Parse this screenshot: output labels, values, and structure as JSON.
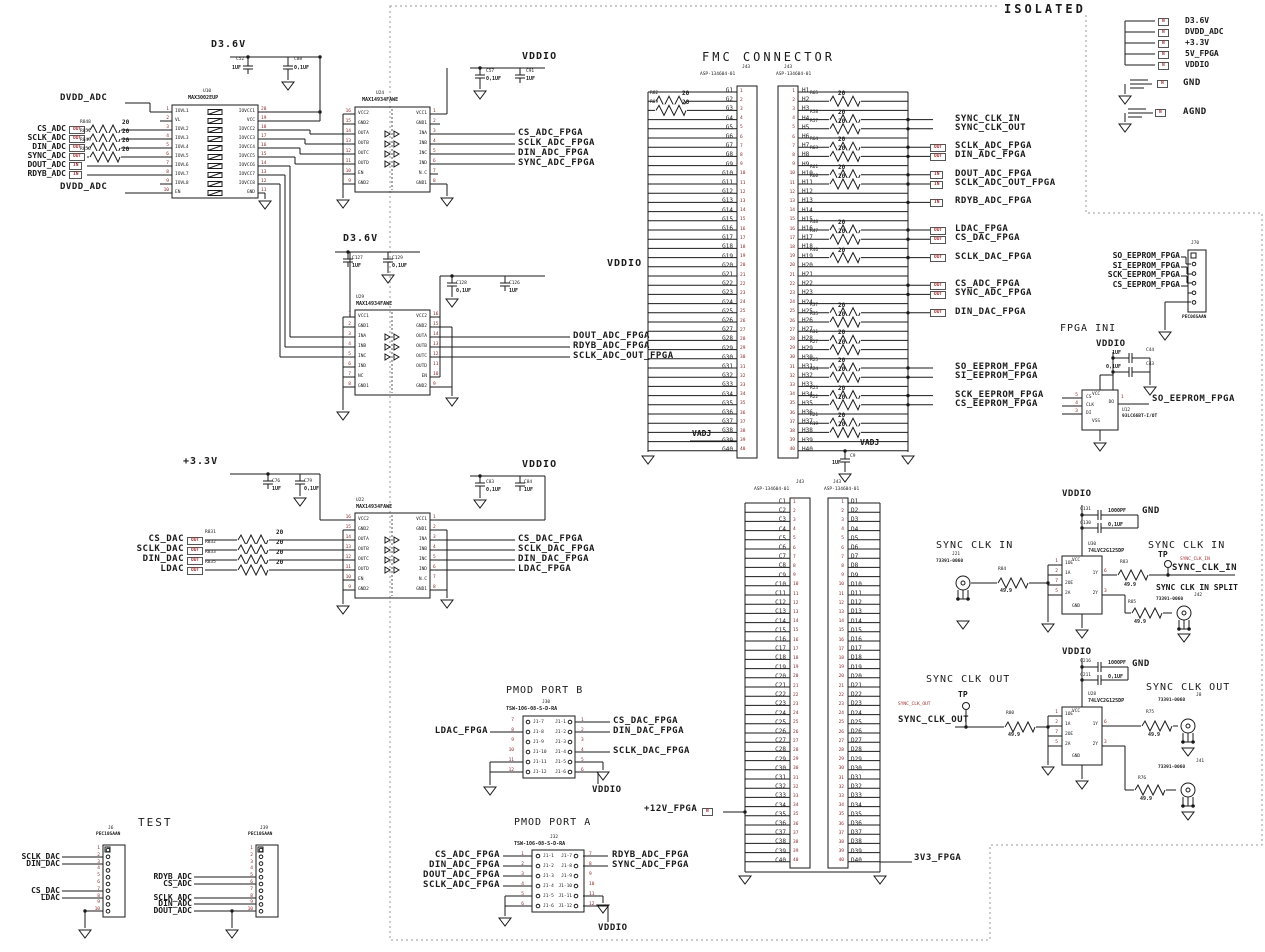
{
  "isolated_label": "ISOLATED",
  "legend": {
    "tag": "IN",
    "flags": [
      "D3.6V",
      "DVDD_ADC",
      "+3.3V",
      "5V_FPGA",
      "VDDIO"
    ],
    "flag_tags": [
      "N",
      "N",
      "N",
      "N",
      "N"
    ],
    "gnd": "GND",
    "gnd_tag": "N",
    "agnd": "AGND",
    "agnd_tag": "N"
  },
  "adc_if": {
    "net_top": "D3.6V",
    "cap1": {
      "ref": "C52",
      "val": "1UF"
    },
    "cap2": {
      "ref": "C88",
      "val": "0,1UF"
    },
    "net_dvdd_top": "DVDD_ADC",
    "net_dvdd_bot": "DVDD_ADC",
    "inputs": [
      {
        "tag": "OUT",
        "label": "CS_ADC",
        "res": "R848",
        "val": "20"
      },
      {
        "tag": "OUT",
        "label": "SCLK_ADC",
        "res": "R851",
        "val": "20"
      },
      {
        "tag": "OUT",
        "label": "DIN_ADC",
        "res": "R849",
        "val": "20"
      },
      {
        "tag": "OUT",
        "label": "SYNC_ADC",
        "res": "R850",
        "val": "20"
      },
      {
        "tag": "IN",
        "label": "DOUT_ADC"
      },
      {
        "tag": "IN",
        "label": "RDYB_ADC"
      }
    ]
  },
  "u10": {
    "ref": "U10",
    "part": "MAX3002EUP",
    "left": [
      {
        "n": "1",
        "name": "IOVL1"
      },
      {
        "n": "2",
        "name": "VL"
      },
      {
        "n": "3",
        "name": "IOVL2"
      },
      {
        "n": "4",
        "name": "IOVL3"
      },
      {
        "n": "5",
        "name": "IOVL4"
      },
      {
        "n": "6",
        "name": "IOVL5"
      },
      {
        "n": "7",
        "name": "IOVL6"
      },
      {
        "n": "8",
        "name": "IOVL7"
      },
      {
        "n": "9",
        "name": "IOVL8"
      },
      {
        "n": "10",
        "name": "EN"
      }
    ],
    "right": [
      {
        "n": "20",
        "name": "IOVCC1"
      },
      {
        "n": "19",
        "name": "VCC"
      },
      {
        "n": "18",
        "name": "IOVCC2"
      },
      {
        "n": "17",
        "name": "IOVCC3"
      },
      {
        "n": "16",
        "name": "IOVCC4"
      },
      {
        "n": "15",
        "name": "IOVCC5"
      },
      {
        "n": "14",
        "name": "IOVCC6"
      },
      {
        "n": "13",
        "name": "IOVCC7"
      },
      {
        "n": "12",
        "name": "IOVCC8"
      },
      {
        "n": "11",
        "name": "GND"
      }
    ]
  },
  "u24": {
    "ref": "U24",
    "part": "MAX14934FAWE",
    "left": [
      {
        "n": "16",
        "name": "VCC2"
      },
      {
        "n": "15",
        "name": "GND2"
      },
      {
        "n": "14",
        "name": "OUTA"
      },
      {
        "n": "13",
        "name": "OUTB"
      },
      {
        "n": "12",
        "name": "OUTC"
      },
      {
        "n": "11",
        "name": "OUTD"
      },
      {
        "n": "10",
        "name": "EN"
      },
      {
        "n": "9",
        "name": "GND2"
      }
    ],
    "right": [
      {
        "n": "1",
        "name": "VCC1"
      },
      {
        "n": "2",
        "name": "GND1"
      },
      {
        "n": "3",
        "name": "INA"
      },
      {
        "n": "4",
        "name": "INB"
      },
      {
        "n": "5",
        "name": "INC"
      },
      {
        "n": "6",
        "name": "IND"
      },
      {
        "n": "7",
        "name": "N.C"
      },
      {
        "n": "8",
        "name": "GND1"
      }
    ],
    "signals": [
      "CS_ADC_FPGA",
      "SCLK_ADC_FPGA",
      "DIN_ADC_FPGA",
      "SYNC_ADC_FPGA"
    ],
    "vddio": {
      "net": "VDDIO",
      "cap1": {
        "ref": "C57",
        "val": "0,1UF"
      },
      "cap2": {
        "ref": "C91",
        "val": "1UF"
      }
    }
  },
  "mid": {
    "net": "D3.6V",
    "cap1": {
      "ref": "C127",
      "val": "1UF"
    },
    "cap2": {
      "ref": "C129",
      "val": "0,1UF"
    }
  },
  "u29": {
    "ref": "U29",
    "part": "MAX14934FAWE",
    "left": [
      {
        "n": "1",
        "name": "VCC1"
      },
      {
        "n": "2",
        "name": "GND1"
      },
      {
        "n": "3",
        "name": "INA"
      },
      {
        "n": "4",
        "name": "INB"
      },
      {
        "n": "5",
        "name": "INC"
      },
      {
        "n": "6",
        "name": "IND"
      },
      {
        "n": "7",
        "name": "NC"
      },
      {
        "n": "8",
        "name": "GND1"
      }
    ],
    "right": [
      {
        "n": "16",
        "name": "VCC2"
      },
      {
        "n": "15",
        "name": "GND2"
      },
      {
        "n": "14",
        "name": "OUTA"
      },
      {
        "n": "13",
        "name": "OUTB"
      },
      {
        "n": "12",
        "name": "OUTC"
      },
      {
        "n": "11",
        "name": "OUTD"
      },
      {
        "n": "10",
        "name": "EN"
      },
      {
        "n": "9",
        "name": "GND2"
      }
    ],
    "signals": [
      "DOUT_ADC_FPGA",
      "RDYB_ADC_FPGA",
      "SCLK_ADC_OUT_FPGA"
    ],
    "vddio": {
      "net": "VDDIO",
      "cap1": {
        "ref": "C128",
        "val": "0,1UF"
      },
      "cap2": {
        "ref": "C126",
        "val": "1UF"
      }
    }
  },
  "dac_if": {
    "net": "+3.3V",
    "cap1": {
      "ref": "C76",
      "val": "1UF"
    },
    "cap2": {
      "ref": "C79",
      "val": "0,1UF"
    },
    "inputs": [
      {
        "tag": "OUT",
        "label": "CS_DAC",
        "res": "R831",
        "val": "20"
      },
      {
        "tag": "OUT",
        "label": "SCLK_DAC",
        "res": "R832",
        "val": "20"
      },
      {
        "tag": "OUT",
        "label": "DIN_DAC",
        "res": "R833",
        "val": "20"
      },
      {
        "tag": "OUT",
        "label": "LDAC",
        "res": "R835",
        "val": "20"
      }
    ]
  },
  "u22": {
    "ref": "U22",
    "part": "MAX14934FAWE",
    "left": [
      {
        "n": "16",
        "name": "VCC2"
      },
      {
        "n": "15",
        "name": "GND2"
      },
      {
        "n": "14",
        "name": "OUTA"
      },
      {
        "n": "13",
        "name": "OUTB"
      },
      {
        "n": "12",
        "name": "OUTC"
      },
      {
        "n": "11",
        "name": "OUTD"
      },
      {
        "n": "10",
        "name": "EN"
      },
      {
        "n": "9",
        "name": "GND2"
      }
    ],
    "right": [
      {
        "n": "1",
        "name": "VCC1"
      },
      {
        "n": "2",
        "name": "GND1"
      },
      {
        "n": "3",
        "name": "INA"
      },
      {
        "n": "4",
        "name": "INB"
      },
      {
        "n": "5",
        "name": "INC"
      },
      {
        "n": "6",
        "name": "IND"
      },
      {
        "n": "7",
        "name": "N.C"
      },
      {
        "n": "8",
        "name": "GND1"
      }
    ],
    "signals": [
      "CS_DAC_FPGA",
      "SCLK_DAC_FPGA",
      "DIN_DAC_FPGA",
      "LDAC_FPGA"
    ],
    "vddio": {
      "net": "VDDIO",
      "cap1": {
        "ref": "C83",
        "val": "0,1UF"
      },
      "cap2": {
        "ref": "C84",
        "val": "1UF"
      }
    }
  },
  "fmc": {
    "title": "FMC CONNECTOR",
    "upper": {
      "left_ref": "J43",
      "left_part": "ASP-134604-01",
      "right_ref": "J43",
      "right_part": "ASP-134604-01"
    },
    "lower": {
      "left_ref": "J43",
      "left_part": "ASP-134604-01",
      "right_ref": "J43",
      "right_part": "ASP-134604-01"
    },
    "g_pins": [
      "G1",
      "G2",
      "G3",
      "G4",
      "G5",
      "G6",
      "G7",
      "G8",
      "G9",
      "G10",
      "G11",
      "G12",
      "G13",
      "G14",
      "G15",
      "G16",
      "G17",
      "G18",
      "G19",
      "G20",
      "G21",
      "G22",
      "G23",
      "G24",
      "G25",
      "G26",
      "G27",
      "G28",
      "G29",
      "G30",
      "G31",
      "G32",
      "G33",
      "G34",
      "G35",
      "G36",
      "G37",
      "G38",
      "G39",
      "G40"
    ],
    "h_pins": [
      "H1",
      "H2",
      "H3",
      "H4",
      "H5",
      "H6",
      "H7",
      "H8",
      "H9",
      "H10",
      "H11",
      "H12",
      "H13",
      "H14",
      "H15",
      "H16",
      "H17",
      "H18",
      "H19",
      "H20",
      "H21",
      "H22",
      "H23",
      "H24",
      "H25",
      "H26",
      "H27",
      "H28",
      "H29",
      "H30",
      "H31",
      "H32",
      "H33",
      "H34",
      "H35",
      "H36",
      "H37",
      "H38",
      "H39",
      "H40"
    ],
    "c_pins": [
      "C1",
      "C2",
      "C3",
      "C4",
      "C5",
      "C6",
      "C7",
      "C8",
      "C9",
      "C10",
      "C11",
      "C12",
      "C13",
      "C14",
      "C15",
      "C16",
      "C17",
      "C18",
      "C19",
      "C20",
      "C21",
      "C22",
      "C23",
      "C24",
      "C25",
      "C26",
      "C27",
      "C28",
      "C29",
      "C30",
      "C31",
      "C32",
      "C33",
      "C34",
      "C35",
      "C36",
      "C37",
      "C38",
      "C39",
      "C40"
    ],
    "d_pins": [
      "D1",
      "D2",
      "D3",
      "D4",
      "D5",
      "D6",
      "D7",
      "D8",
      "D9",
      "D10",
      "D11",
      "D12",
      "D13",
      "D14",
      "D15",
      "D16",
      "D17",
      "D18",
      "D19",
      "D20",
      "D21",
      "D22",
      "D23",
      "D24",
      "D25",
      "D26",
      "D27",
      "D28",
      "D29",
      "D30",
      "D31",
      "D32",
      "D33",
      "D34",
      "D35",
      "D36",
      "D37",
      "D38",
      "D39",
      "D40"
    ],
    "g_res": [
      {
        "row": 2,
        "ref": "R82",
        "val": "20"
      },
      {
        "row": 3,
        "ref": "R69",
        "val": "20"
      }
    ],
    "h_res": [
      {
        "row": 2,
        "ref": "R65",
        "val": "20"
      },
      {
        "row": 4,
        "ref": "R58",
        "val": "20"
      },
      {
        "row": 5,
        "ref": "R57",
        "val": "20"
      },
      {
        "row": 7,
        "ref": "R64",
        "val": "20"
      },
      {
        "row": 8,
        "ref": "R63",
        "val": "20"
      },
      {
        "row": 10,
        "ref": "R61",
        "val": "20"
      },
      {
        "row": 11,
        "ref": "R60",
        "val": "20"
      },
      {
        "row": 16,
        "ref": "R48",
        "val": "20"
      },
      {
        "row": 17,
        "ref": "R47",
        "val": "20"
      },
      {
        "row": 19,
        "ref": "R46",
        "val": "20"
      },
      {
        "row": 25,
        "ref": "R37",
        "val": "20"
      },
      {
        "row": 26,
        "ref": "R35",
        "val": "20"
      },
      {
        "row": 28,
        "ref": "R31",
        "val": "20"
      },
      {
        "row": 29,
        "ref": "R27",
        "val": "20"
      },
      {
        "row": 31,
        "ref": "R25",
        "val": "20"
      },
      {
        "row": 32,
        "ref": "R24",
        "val": "20"
      },
      {
        "row": 34,
        "ref": "R23",
        "val": "20"
      },
      {
        "row": 35,
        "ref": "R22",
        "val": "20"
      },
      {
        "row": 37,
        "ref": "R21",
        "val": "20"
      },
      {
        "row": 38,
        "ref": "R19",
        "val": "20"
      }
    ],
    "h_sig": [
      {
        "row": 4,
        "label": "SYNC_CLK_IN"
      },
      {
        "row": 5,
        "label": "SYNC_CLK_OUT"
      },
      {
        "row": 7,
        "tag": "OUT",
        "label": "SCLK_ADC_FPGA"
      },
      {
        "row": 8,
        "tag": "OUT",
        "label": "DIN_ADC_FPGA"
      },
      {
        "row": 10,
        "tag": "IN",
        "label": "DOUT_ADC_FPGA"
      },
      {
        "row": 11,
        "tag": "IN",
        "label": "SCLK_ADC_OUT_FPGA"
      },
      {
        "row": 13,
        "tag": "IN",
        "label": "RDYB_ADC_FPGA"
      },
      {
        "row": 16,
        "tag": "OUT",
        "label": "LDAC_FPGA"
      },
      {
        "row": 17,
        "tag": "OUT",
        "label": "CS_DAC_FPGA"
      },
      {
        "row": 19,
        "tag": "OUT",
        "label": "SCLK_DAC_FPGA"
      },
      {
        "row": 22,
        "tag": "OUT",
        "label": "CS_ADC_FPGA"
      },
      {
        "row": 23,
        "tag": "OUT",
        "label": "SYNC_ADC_FPGA"
      },
      {
        "row": 25,
        "tag": "OUT",
        "label": "DIN_DAC_FPGA"
      },
      {
        "row": 31,
        "label": "SO_EEPROM_FPGA"
      },
      {
        "row": 32,
        "label": "SI_EEPROM_FPGA"
      },
      {
        "row": 34,
        "label": "SCK_EEPROM_FPGA"
      },
      {
        "row": 35,
        "label": "CS_EEPROM_FPGA"
      }
    ],
    "vadj_left": "VADJ",
    "vadj_right": "VADJ",
    "vadj_cap": {
      "ref": "C9",
      "val": "1UF"
    },
    "p12v": {
      "tag": "N",
      "label": "+12V_FPGA"
    },
    "p3v3": "3V3_FPGA"
  },
  "eeprom_hdr": {
    "ref": "J70",
    "part": "PEC06SAAN",
    "signals": [
      "SO_EEPROM_FPGA",
      "SI_EEPROM_FPGA",
      "SCK_EEPROM_FPGA",
      "CS_EEPROM_FPGA"
    ]
  },
  "fpga_ini": {
    "title": "FPGA INI",
    "net": "VDDIO",
    "cap1": {
      "ref": "C44",
      "val": "1UF"
    },
    "cap2": {
      "ref": "C43",
      "val": "0,1UF"
    },
    "u12": {
      "ref": "U12",
      "part": "93LC66BT-I/OT",
      "pins_left": [
        {
          "n": "5",
          "name": "CS"
        },
        {
          "n": "4",
          "name": "CLK"
        },
        {
          "n": "3",
          "name": "DI"
        }
      ],
      "pin_do": {
        "n": "1",
        "name": "DO"
      },
      "vcc": "VCC",
      "vss": "VSS",
      "out": "SO_EEPROM_FPGA"
    }
  },
  "clk_in": {
    "title": "SYNC CLK IN",
    "sma": {
      "ref": "J21",
      "part": "73391-0060"
    },
    "r1": {
      "ref": "R84",
      "val": "49.9"
    },
    "buf": {
      "ref": "U30",
      "part": "74LVC2G125DP",
      "left": [
        {
          "n": "1",
          "name": "1OE"
        },
        {
          "n": "2",
          "name": "1A"
        },
        {
          "n": "7",
          "name": "2OE"
        },
        {
          "n": "5",
          "name": "2A"
        }
      ],
      "right": [
        {
          "n": "6",
          "name": "1Y",
          "row": 2
        },
        {
          "n": "3",
          "name": "2Y",
          "row": 4
        }
      ],
      "vcc": "VCC",
      "gnd": "GND"
    },
    "vddio": "VDDIO",
    "cap1": {
      "ref": "C131",
      "val": "1000PF"
    },
    "cap2": {
      "ref": "C130",
      "val": "0,1UF"
    },
    "gnd_lbl": "GND",
    "title_r": "SYNC CLK IN",
    "tp": "TP",
    "net_sm": "SYNC_CLK_IN",
    "net": "SYNC_CLK_IN",
    "r2": {
      "ref": "R83",
      "val": "49.9"
    },
    "split_title": "SYNC CLK IN SPLIT",
    "r3": {
      "ref": "R85",
      "val": "49.9"
    },
    "sma2": {
      "ref": "J42",
      "part": "73391-0060"
    }
  },
  "clk_out": {
    "title": "SYNC CLK OUT",
    "tp": "TP",
    "net_sm": "SYNC_CLK_OUT",
    "net": "SYNC_CLK_OUT",
    "r1": {
      "ref": "R80",
      "val": "49.9"
    },
    "buf": {
      "ref": "U28",
      "part": "74LVC2G125DP",
      "left": [
        {
          "n": "1",
          "name": "1OE"
        },
        {
          "n": "2",
          "name": "1A"
        },
        {
          "n": "7",
          "name": "2OE"
        },
        {
          "n": "5",
          "name": "2A"
        }
      ],
      "right": [
        {
          "n": "6",
          "name": "1Y",
          "row": 2
        },
        {
          "n": "3",
          "name": "2Y",
          "row": 4
        }
      ],
      "vcc": "VCC",
      "gnd": "GND"
    },
    "vddio": "VDDIO",
    "cap1": {
      "ref": "C216",
      "val": "1000PF"
    },
    "cap2": {
      "ref": "C211",
      "val": "0,1UF"
    },
    "gnd_lbl": "GND",
    "title_r": "SYNC CLK OUT",
    "r2": {
      "ref": "R75",
      "val": "49.9"
    },
    "sma1": {
      "ref": "J8",
      "part": "73391-0060"
    },
    "r3": {
      "ref": "R76",
      "val": "49.9"
    },
    "sma2": {
      "ref": "J41",
      "part": "73391-0060"
    }
  },
  "pmod_b": {
    "title": "PMOD PORT B",
    "ref": "J30",
    "part": "TSW-106-08-S-D-RA",
    "left_inside": [
      "J1-7",
      "J1-8",
      "J1-9",
      "J1-10",
      "J1-11",
      "J1-12"
    ],
    "right_inside": [
      "J1-1",
      "J1-2",
      "J1-3",
      "J1-4",
      "J1-5",
      "J1-6"
    ],
    "sig_left": [
      {
        "row": 2,
        "label": "LDAC_FPGA"
      }
    ],
    "sig_right": [
      {
        "row": 1,
        "label": "CS_DAC_FPGA"
      },
      {
        "row": 2,
        "label": "DIN_DAC_FPGA"
      },
      {
        "row": 4,
        "label": "SCLK_DAC_FPGA"
      }
    ],
    "vddio": "VDDIO"
  },
  "pmod_a": {
    "title": "PMOD PORT A",
    "ref": "J32",
    "part": "TSW-106-08-S-D-RA",
    "left_inside": [
      "J1-1",
      "J1-2",
      "J1-3",
      "J1-4",
      "J1-5",
      "J1-6"
    ],
    "right_inside": [
      "J1-7",
      "J1-8",
      "J1-9",
      "J1-10",
      "J1-11",
      "J1-12"
    ],
    "sig_left": [
      {
        "row": 1,
        "label": "CS_ADC_FPGA"
      },
      {
        "row": 2,
        "label": "DIN_ADC_FPGA"
      },
      {
        "row": 3,
        "label": "DOUT_ADC_FPGA"
      },
      {
        "row": 4,
        "label": "SCLK_ADC_FPGA"
      }
    ],
    "sig_right": [
      {
        "row": 1,
        "label": "RDYB_ADC_FPGA"
      },
      {
        "row": 2,
        "label": "SYNC_ADC_FPGA"
      }
    ],
    "vddio": "VDDIO"
  },
  "test": {
    "title": "TEST",
    "j6": {
      "ref": "J6",
      "part": "PEC10SAAN",
      "sig": [
        {
          "row": 2,
          "label": "SCLK_DAC"
        },
        {
          "row": 3,
          "label": "DIN_DAC"
        },
        {
          "row": 7,
          "label": "CS_DAC"
        },
        {
          "row": 8,
          "label": "LDAC"
        }
      ]
    },
    "j39": {
      "ref": "J39",
      "part": "PEC10SAAN",
      "sig": [
        {
          "row": 5,
          "label": "RDYB_ADC"
        },
        {
          "row": 6,
          "label": "CS_ADC"
        },
        {
          "row": 8,
          "label": "SCLK_ADC"
        },
        {
          "row": 9,
          "label": "DIN_ADC"
        },
        {
          "row": 10,
          "label": "DOUT_ADC"
        }
      ]
    }
  }
}
